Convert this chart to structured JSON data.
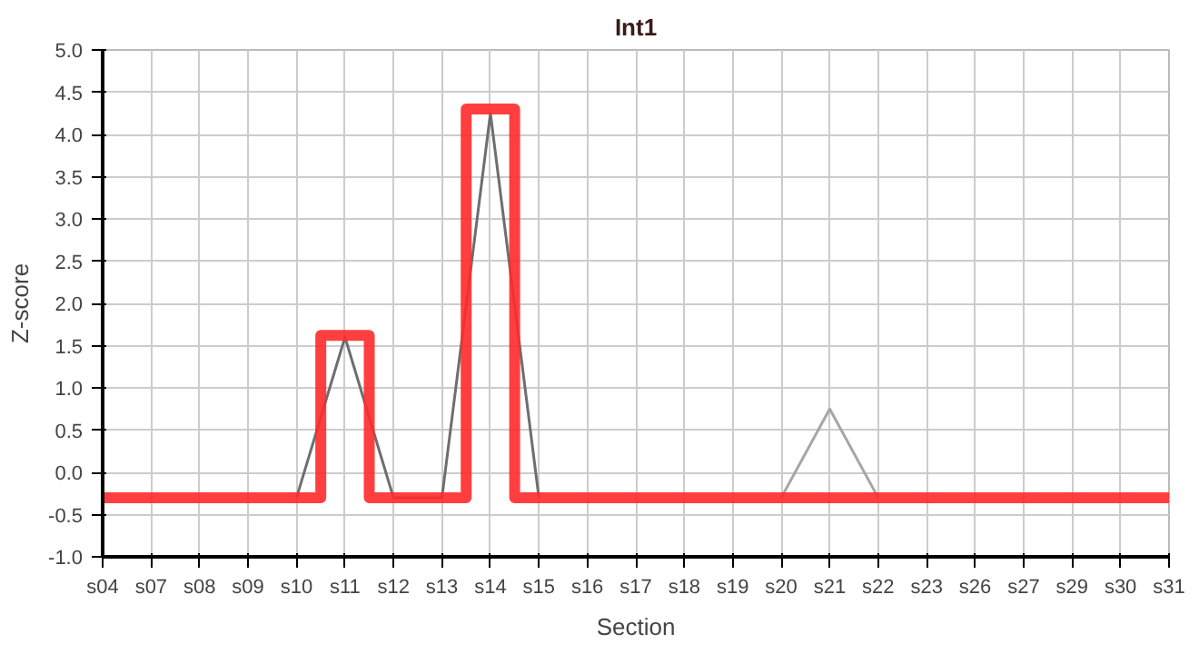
{
  "chart_data": {
    "type": "line",
    "title": "Int1",
    "xlabel": "Section",
    "ylabel": "Z-score",
    "categories": [
      "s04",
      "s07",
      "s08",
      "s09",
      "s10",
      "s11",
      "s12",
      "s13",
      "s14",
      "s15",
      "s16",
      "s17",
      "s18",
      "s19",
      "s20",
      "s21",
      "s22",
      "s23",
      "s26",
      "s27",
      "s29",
      "s30",
      "s31"
    ],
    "series": [
      {
        "color": "#6e6e6e",
        "values": [
          null,
          null,
          null,
          null,
          -0.3,
          1.6,
          -0.3,
          -0.3,
          4.25,
          -0.3,
          null,
          null,
          null,
          null,
          null,
          null,
          null,
          null,
          null,
          null,
          null,
          null,
          null
        ]
      },
      {
        "color": "#a6a6a6",
        "values": [
          null,
          null,
          null,
          null,
          null,
          null,
          null,
          null,
          null,
          null,
          null,
          null,
          null,
          null,
          -0.3,
          0.75,
          -0.3,
          null,
          null,
          null,
          null,
          null,
          null
        ]
      },
      {
        "type": "step",
        "color": "#ff2a2a",
        "values": [
          -0.3,
          -0.3,
          -0.3,
          -0.3,
          -0.3,
          1.62,
          -0.3,
          -0.3,
          4.3,
          -0.3,
          -0.3,
          -0.3,
          -0.3,
          -0.3,
          -0.3,
          -0.3,
          -0.3,
          -0.3,
          -0.3,
          -0.3,
          -0.3,
          -0.3,
          -0.3
        ]
      }
    ],
    "ylim": [
      -1.0,
      5.0
    ],
    "yticks": [
      {
        "value": -1.0,
        "label": "-1.0"
      },
      {
        "value": -0.5,
        "label": "-0.5"
      },
      {
        "value": 0,
        "label": "0.0"
      },
      {
        "value": 0.5,
        "label": "0.5"
      },
      {
        "value": 1.0,
        "label": "1.0"
      },
      {
        "value": 1.5,
        "label": "1.5"
      },
      {
        "value": 2.0,
        "label": "2.0"
      },
      {
        "value": 2.5,
        "label": "2.5"
      },
      {
        "value": 3.0,
        "label": "3.0"
      },
      {
        "value": 3.5,
        "label": "3.5"
      },
      {
        "value": 4.0,
        "label": "4.0"
      },
      {
        "value": 4.5,
        "label": "4.5"
      },
      {
        "value": 5.0,
        "label": "5.0"
      }
    ],
    "grid": true
  }
}
